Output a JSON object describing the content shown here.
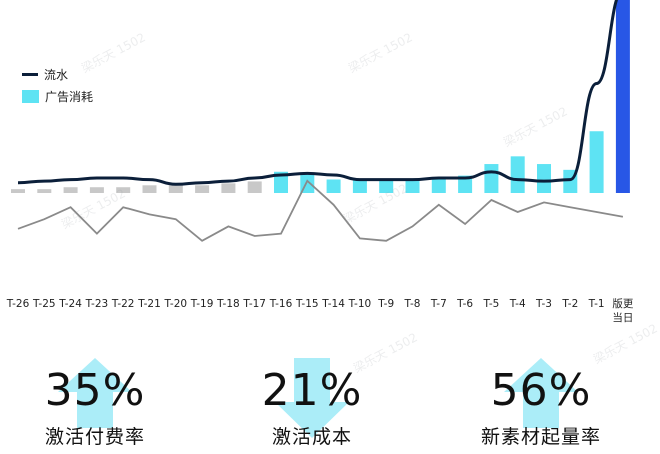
{
  "chart_data": {
    "type": "bar",
    "categories": [
      "T-26",
      "T-25",
      "T-24",
      "T-23",
      "T-22",
      "T-21",
      "T-20",
      "T-19",
      "T-18",
      "T-17",
      "T-16",
      "T-15",
      "T-14",
      "T-10",
      "T-9",
      "T-8",
      "T-7",
      "T-6",
      "T-5",
      "T-4",
      "T-3",
      "T-2",
      "T-1",
      "版更当日"
    ],
    "category_labels": [
      {
        "l1": "T-26"
      },
      {
        "l1": "T-25"
      },
      {
        "l1": "T-24"
      },
      {
        "l1": "T-23"
      },
      {
        "l1": "T-22"
      },
      {
        "l1": "T-21"
      },
      {
        "l1": "T-20"
      },
      {
        "l1": "T-19"
      },
      {
        "l1": "T-18"
      },
      {
        "l1": "T-17"
      },
      {
        "l1": "T-16"
      },
      {
        "l1": "T-15"
      },
      {
        "l1": "T-14"
      },
      {
        "l1": "T-10"
      },
      {
        "l1": "T-9"
      },
      {
        "l1": "T-8"
      },
      {
        "l1": "T-7"
      },
      {
        "l1": "T-6"
      },
      {
        "l1": "T-5"
      },
      {
        "l1": "T-4"
      },
      {
        "l1": "T-3"
      },
      {
        "l1": "T-2"
      },
      {
        "l1": "T-1"
      },
      {
        "l1": "版更",
        "l2": "当日"
      }
    ],
    "series": [
      {
        "name": "广告消耗",
        "type": "bar",
        "values": [
          2,
          2,
          3,
          3,
          3,
          4,
          4,
          4,
          5,
          6,
          11,
          10,
          7,
          7,
          7,
          7,
          7,
          9,
          15,
          19,
          15,
          12,
          32,
          100
        ],
        "colors": [
          "#c8c8c8",
          "#c8c8c8",
          "#c8c8c8",
          "#c8c8c8",
          "#c8c8c8",
          "#c8c8c8",
          "#c8c8c8",
          "#c8c8c8",
          "#c8c8c8",
          "#c8c8c8",
          "#5ee3f3",
          "#5ee3f3",
          "#5ee3f3",
          "#5ee3f3",
          "#5ee3f3",
          "#5ee3f3",
          "#5ee3f3",
          "#5ee3f3",
          "#5ee3f3",
          "#5ee3f3",
          "#5ee3f3",
          "#5ee3f3",
          "#5ee3f3",
          "#2857e6"
        ]
      },
      {
        "name": "流水",
        "type": "line",
        "color": "#0b1f3a",
        "values": [
          6,
          7,
          8,
          9,
          9,
          8,
          5,
          6,
          7,
          9,
          11,
          12,
          11,
          8,
          8,
          8,
          9,
          9,
          13,
          8,
          7,
          8,
          70,
          130
        ]
      },
      {
        "type": "line",
        "color": "#8a8a8a",
        "values": [
          38,
          42,
          47,
          36,
          47,
          44,
          42,
          33,
          39,
          35,
          36,
          58,
          48,
          34,
          33,
          39,
          48,
          40,
          50,
          45,
          49,
          47,
          45,
          43
        ]
      }
    ],
    "ylim": [
      0,
      100
    ],
    "grid": false,
    "legend": "top-left"
  },
  "legend": [
    {
      "label": "流水",
      "kind": "line",
      "color": "#0b1f3a"
    },
    {
      "label": "广告消耗",
      "kind": "bar",
      "color": "#5ee3f3"
    }
  ],
  "kpis": [
    {
      "value": "35%",
      "label": "激活付费率"
    },
    {
      "value": "21%",
      "label": "激活成本"
    },
    {
      "value": "56%",
      "label": "新素材起量率"
    }
  ],
  "colors": {
    "accent_bar": "#5ee3f3",
    "highlight_bar": "#2857e6",
    "muted_bar": "#c8c8c8",
    "arrow": "#8fe7f5"
  },
  "watermark_text": "梁乐天 1502"
}
